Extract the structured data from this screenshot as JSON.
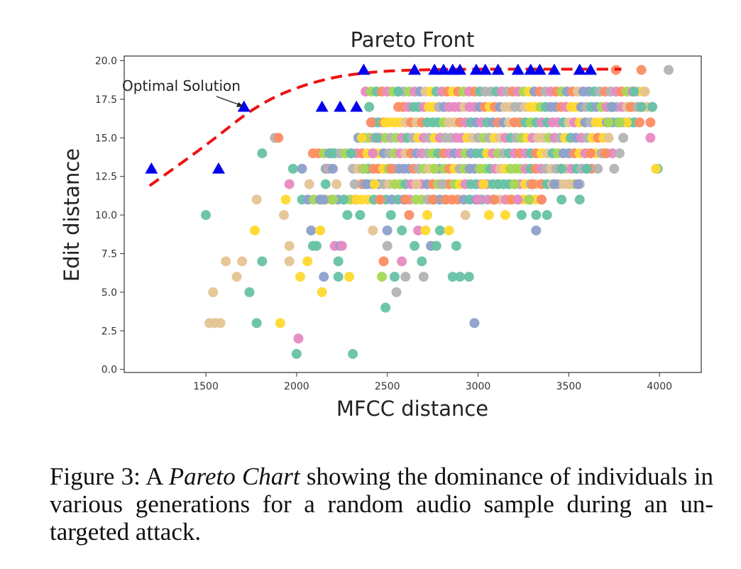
{
  "chart_data": {
    "type": "scatter",
    "title": "Pareto Front",
    "xlabel": "MFCC distance",
    "ylabel": "Edit distance",
    "xlim": [
      1050,
      4230
    ],
    "ylim": [
      -0.2,
      20.3
    ],
    "xticks": [
      "1500",
      "2000",
      "2500",
      "3000",
      "3500",
      "4000"
    ],
    "yticks": [
      "0.0",
      "2.5",
      "5.0",
      "7.5",
      "10.0",
      "12.5",
      "15.0",
      "17.5",
      "20.0"
    ],
    "grid": false,
    "annotation": {
      "text": "Optimal Solution",
      "x": 1710,
      "y": 17
    },
    "palette": [
      "#66c2a5",
      "#fc8d62",
      "#8da0cb",
      "#e78ac3",
      "#a6d854",
      "#ffd92f",
      "#e5c494",
      "#b3b3b3"
    ],
    "pareto_front": {
      "color": "#0000ee",
      "line_color": "#ee1111",
      "points": [
        [
          1200,
          13
        ],
        [
          1570,
          13
        ],
        [
          1710,
          17
        ],
        [
          2140,
          17
        ],
        [
          2240,
          17
        ],
        [
          2330,
          17
        ],
        [
          2370,
          19.4
        ],
        [
          2650,
          19.4
        ],
        [
          2760,
          19.4
        ],
        [
          2810,
          19.4
        ],
        [
          2860,
          19.4
        ],
        [
          2900,
          19.4
        ],
        [
          2990,
          19.4
        ],
        [
          3040,
          19.4
        ],
        [
          3110,
          19.4
        ],
        [
          3220,
          19.4
        ],
        [
          3290,
          19.4
        ],
        [
          3340,
          19.4
        ],
        [
          3420,
          19.4
        ],
        [
          3560,
          19.4
        ],
        [
          3620,
          19.4
        ]
      ],
      "curve": [
        [
          1190,
          11.9
        ],
        [
          1500,
          14.5
        ],
        [
          1800,
          17.3
        ],
        [
          2100,
          18.7
        ],
        [
          2400,
          19.3
        ],
        [
          2800,
          19.45
        ],
        [
          3300,
          19.45
        ],
        [
          3790,
          19.45
        ]
      ]
    },
    "scatter_points": [
      [
        1500,
        10,
        0
      ],
      [
        1520,
        3,
        6
      ],
      [
        1550,
        3,
        6
      ],
      [
        1580,
        3,
        6
      ],
      [
        1540,
        5,
        6
      ],
      [
        1610,
        7,
        6
      ],
      [
        1670,
        6,
        6
      ],
      [
        1700,
        7,
        6
      ],
      [
        1740,
        5,
        0
      ],
      [
        1780,
        3,
        0
      ],
      [
        1770,
        9,
        5
      ],
      [
        1810,
        7,
        0
      ],
      [
        1780,
        11,
        6
      ],
      [
        1810,
        14,
        0
      ],
      [
        1880,
        15,
        7
      ],
      [
        1900,
        15,
        1
      ],
      [
        1910,
        3,
        5
      ],
      [
        1940,
        11,
        5
      ],
      [
        1960,
        12,
        3
      ],
      [
        1980,
        13,
        0
      ],
      [
        1930,
        10,
        6
      ],
      [
        1960,
        8,
        6
      ],
      [
        1960,
        7,
        6
      ],
      [
        2020,
        6,
        5
      ],
      [
        2000,
        1,
        0
      ],
      [
        2010,
        2,
        3
      ],
      [
        2030,
        13,
        2
      ],
      [
        2060,
        7,
        5
      ],
      [
        2070,
        12,
        6
      ],
      [
        2080,
        9,
        2
      ],
      [
        2090,
        8,
        0
      ],
      [
        2110,
        8,
        0
      ],
      [
        2130,
        11,
        2
      ],
      [
        2150,
        11,
        2
      ],
      [
        2160,
        13,
        0
      ],
      [
        2170,
        13,
        3
      ],
      [
        2180,
        13,
        7
      ],
      [
        2130,
        9,
        5
      ],
      [
        2150,
        6,
        2
      ],
      [
        2140,
        5,
        5
      ],
      [
        2160,
        12,
        0
      ],
      [
        2190,
        14,
        0
      ],
      [
        2200,
        11,
        4
      ],
      [
        2200,
        13,
        2
      ],
      [
        2220,
        12,
        6
      ],
      [
        2210,
        8,
        3
      ],
      [
        2240,
        8,
        2
      ],
      [
        2250,
        8,
        3
      ],
      [
        2230,
        7,
        0
      ],
      [
        2230,
        6,
        0
      ],
      [
        2280,
        10,
        0
      ],
      [
        2260,
        11,
        0
      ],
      [
        2290,
        6,
        5
      ],
      [
        2300,
        14,
        0
      ],
      [
        2310,
        1,
        0
      ],
      [
        2320,
        12,
        7
      ],
      [
        2330,
        11,
        5
      ],
      [
        2350,
        10,
        0
      ],
      [
        2360,
        15,
        5
      ],
      [
        2370,
        13,
        4
      ],
      [
        2380,
        12,
        2
      ],
      [
        2400,
        17,
        0
      ],
      [
        2410,
        16,
        1
      ],
      [
        2420,
        14,
        3
      ],
      [
        2420,
        9,
        6
      ],
      [
        2430,
        12,
        5
      ],
      [
        2440,
        15,
        0
      ],
      [
        2460,
        11,
        1
      ],
      [
        2470,
        6,
        4
      ],
      [
        2480,
        7,
        1
      ],
      [
        2490,
        4,
        0
      ],
      [
        2490,
        16,
        5
      ],
      [
        2500,
        8,
        7
      ],
      [
        2500,
        9,
        2
      ],
      [
        2520,
        10,
        0
      ],
      [
        2520,
        13,
        1
      ],
      [
        2540,
        6,
        0
      ],
      [
        2550,
        5,
        7
      ],
      [
        2560,
        18,
        0
      ],
      [
        2580,
        7,
        3
      ],
      [
        2580,
        9,
        0
      ],
      [
        2600,
        11,
        1
      ],
      [
        2600,
        6,
        7
      ],
      [
        2620,
        10,
        1
      ],
      [
        2650,
        8,
        0
      ],
      [
        2660,
        12,
        6
      ],
      [
        2670,
        9,
        3
      ],
      [
        2690,
        7,
        0
      ],
      [
        2700,
        6,
        7
      ],
      [
        2710,
        9,
        5
      ],
      [
        2720,
        10,
        5
      ],
      [
        2740,
        8,
        2
      ],
      [
        2750,
        11,
        1
      ],
      [
        2760,
        13,
        4
      ],
      [
        2770,
        8,
        0
      ],
      [
        2790,
        9,
        0
      ],
      [
        2800,
        12,
        7
      ],
      [
        2820,
        11,
        1
      ],
      [
        2840,
        9,
        5
      ],
      [
        2860,
        6,
        0
      ],
      [
        2880,
        8,
        0
      ],
      [
        2900,
        6,
        0
      ],
      [
        2930,
        10,
        6
      ],
      [
        2950,
        6,
        0
      ],
      [
        2980,
        3,
        2
      ],
      [
        3000,
        11,
        3
      ],
      [
        3030,
        12,
        5
      ],
      [
        3060,
        10,
        5
      ],
      [
        3090,
        11,
        1
      ],
      [
        3110,
        12,
        0
      ],
      [
        3150,
        10,
        5
      ],
      [
        3180,
        11,
        1
      ],
      [
        3200,
        12,
        4
      ],
      [
        3220,
        11,
        3
      ],
      [
        3240,
        10,
        0
      ],
      [
        3280,
        11,
        4
      ],
      [
        3300,
        12,
        1
      ],
      [
        3320,
        10,
        0
      ],
      [
        3320,
        9,
        2
      ],
      [
        3350,
        11,
        1
      ],
      [
        3380,
        10,
        0
      ],
      [
        3420,
        12,
        2
      ],
      [
        3460,
        13,
        0
      ],
      [
        3460,
        11,
        0
      ],
      [
        3500,
        12,
        6
      ],
      [
        3550,
        12,
        2
      ],
      [
        3560,
        11,
        0
      ],
      [
        3600,
        13,
        0
      ],
      [
        3620,
        14,
        1
      ],
      [
        3660,
        13,
        7
      ],
      [
        3700,
        14,
        1
      ],
      [
        3720,
        15,
        6
      ],
      [
        3750,
        13,
        7
      ],
      [
        3780,
        14,
        7
      ],
      [
        3820,
        16,
        5
      ],
      [
        3840,
        17,
        1
      ],
      [
        3860,
        18,
        0
      ],
      [
        3880,
        17,
        7
      ],
      [
        3900,
        17,
        0
      ],
      [
        3920,
        18,
        6
      ],
      [
        3950,
        16,
        1
      ],
      [
        3950,
        15,
        3
      ],
      [
        3960,
        17,
        0
      ],
      [
        3990,
        13,
        0
      ],
      [
        3980,
        13,
        5
      ],
      [
        3900,
        19.4,
        1
      ],
      [
        4050,
        19.4,
        7
      ],
      [
        3760,
        19.4,
        1
      ],
      [
        3720,
        16,
        4
      ],
      [
        3740,
        17,
        2
      ],
      [
        3780,
        16,
        4
      ],
      [
        3800,
        15,
        7
      ]
    ],
    "bands": [
      {
        "y": 18,
        "x": [
          2380,
          3930
        ],
        "step": 30
      },
      {
        "y": 17,
        "x": [
          2560,
          3960
        ],
        "step": 28
      },
      {
        "y": 16,
        "x": [
          2420,
          3900
        ],
        "step": 30
      },
      {
        "y": 15,
        "x": [
          2340,
          3700
        ],
        "step": 30
      },
      {
        "y": 14,
        "x": [
          2090,
          3760
        ],
        "step": 30
      },
      {
        "y": 13,
        "x": [
          2310,
          3650
        ],
        "step": 28
      },
      {
        "y": 12,
        "x": [
          2360,
          3560
        ],
        "step": 30
      },
      {
        "y": 11,
        "x": [
          2030,
          3360
        ],
        "step": 33
      }
    ]
  },
  "caption": {
    "prefix": "Figure 3: A ",
    "emphasis": "Pareto Chart",
    "suffix": " showing the dominance of individuals in various generations for a random audio sample during an un-targeted attack."
  }
}
